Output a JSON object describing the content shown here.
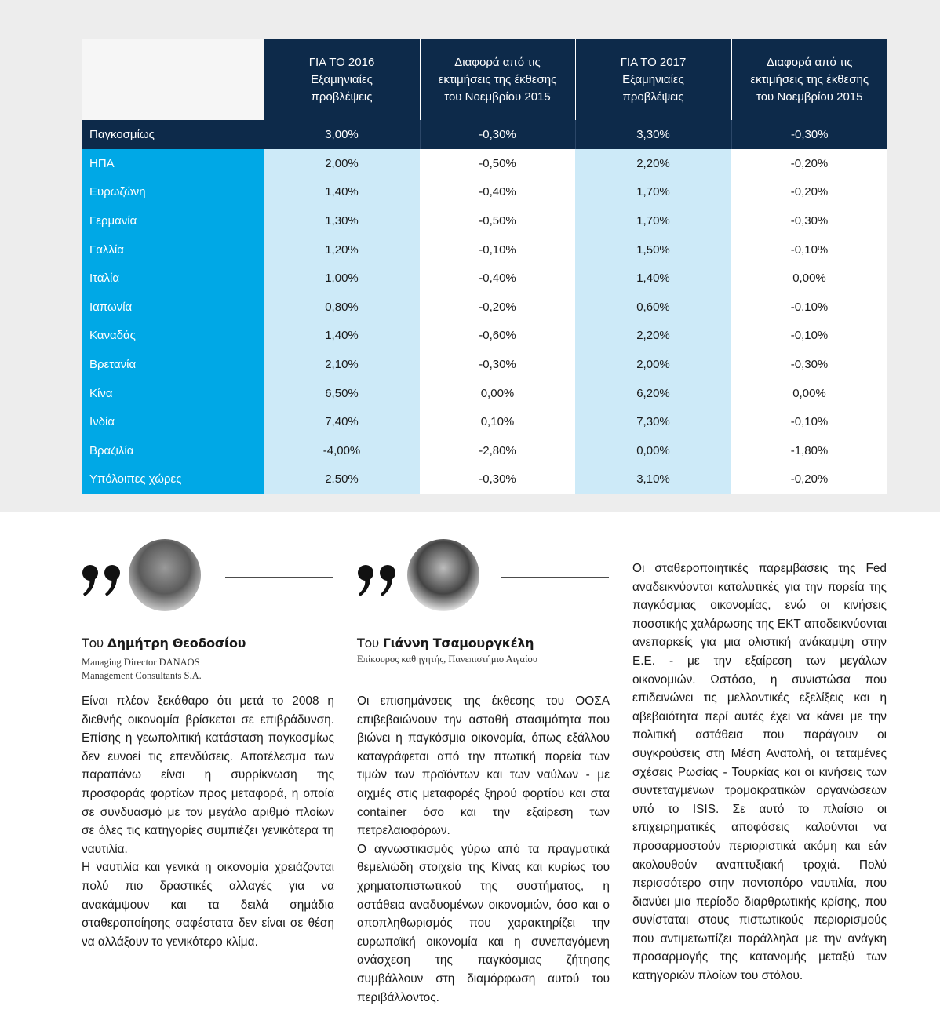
{
  "table": {
    "headers": [
      [
        "ΓΙΑ ΤΟ 2016",
        "Εξαμηνιαίες",
        "προβλέψεις"
      ],
      [
        "Διαφορά από τις",
        "εκτιμήσεις της έκθεσης",
        "του Νοεμβρίου 2015"
      ],
      [
        "ΓΙΑ ΤΟ 2017",
        "Εξαμηνιαίες",
        "προβλέψεις"
      ],
      [
        "Διαφορά από τις",
        "εκτιμήσεις της έκθεσης",
        "του Νοεμβρίου 2015"
      ]
    ],
    "rows": [
      [
        "Παγκοσμίως",
        "3,00%",
        "-0,30%",
        "3,30%",
        "-0,30%"
      ],
      [
        "ΗΠΑ",
        "2,00%",
        "-0,50%",
        "2,20%",
        "-0,20%"
      ],
      [
        "Ευρωζώνη",
        "1,40%",
        "-0,40%",
        "1,70%",
        "-0,20%"
      ],
      [
        "Γερμανία",
        "1,30%",
        "-0,50%",
        "1,70%",
        "-0,30%"
      ],
      [
        "Γαλλία",
        "1,20%",
        "-0,10%",
        "1,50%",
        "-0,10%"
      ],
      [
        "Ιταλία",
        "1,00%",
        "-0,40%",
        "1,40%",
        "0,00%"
      ],
      [
        "Ιαπωνία",
        "0,80%",
        "-0,20%",
        "0,60%",
        "-0,10%"
      ],
      [
        "Καναδάς",
        "1,40%",
        "-0,60%",
        "2,20%",
        "-0,10%"
      ],
      [
        "Βρετανία",
        "2,10%",
        "-0,30%",
        "2,00%",
        "-0,30%"
      ],
      [
        "Κίνα",
        "6,50%",
        "0,00%",
        "6,20%",
        "0,00%"
      ],
      [
        "Ινδία",
        "7,40%",
        "0,10%",
        "7,30%",
        "-0,10%"
      ],
      [
        "Βραζιλία",
        "-4,00%",
        "-2,80%",
        "0,00%",
        "-1,80%"
      ],
      [
        "Υπόλοιπες χώρες",
        "2.50%",
        "-0,30%",
        "3,10%",
        "-0,20%"
      ]
    ]
  },
  "columns": [
    {
      "author": {
        "prefix": "Του",
        "name": "Δημήτρη Θεοδοσίου",
        "role": [
          "Managing Director DANAOS",
          "Management Consultants S.A."
        ]
      },
      "paragraphs": [
        "Είναι πλέον ξεκάθαρο ότι μετά το 2008 η διεθνής οικονομία βρίσκεται σε επιβράδυνση. Επίσης η γεωπολιτική κατάσταση παγκοσμίως δεν ευνοεί τις επενδύσεις. Αποτέλεσμα των παραπάνω είναι η συρρίκνωση της προσφοράς φορτίων προς μεταφορά, η οποία σε συνδυασμό με τον μεγάλο αριθμό πλοίων σε όλες τις κατηγορίες συμπιέζει γενικότερα τη ναυτιλία.",
        "Η ναυτιλία και γενικά η οικονομία χρειάζονται πολύ πιο δραστικές αλλαγές για να ανακάμψουν και τα δειλά σημάδια σταθεροποίησης σαφέστατα δεν είναι σε θέση να αλλάξουν το γενικότερο κλίμα."
      ]
    },
    {
      "author": {
        "prefix": "Του",
        "name": "Γιάννη Τσαμουργκέλη",
        "role": [
          "Επίκουρος καθηγητής, Πανεπιστήμιο Αιγαίου"
        ]
      },
      "paragraphs": [
        "Οι επισημάνσεις της έκθεσης του ΟΟΣΑ επιβεβαιώνουν την ασταθή στασιμότητα που βιώνει η παγκόσμια οικονομία, όπως εξάλλου καταγράφεται από την πτωτική πορεία των τιμών των προϊόντων και των ναύλων - με αιχμές στις μεταφορές ξηρού φορτίου και στα container όσο και την εξαίρεση των πετρελαιοφόρων.",
        "Ο αγνωστικισμός γύρω από τα πραγματικά θεμελιώδη στοιχεία της Κίνας και κυρίως του χρηματοπιστωτικού της συστήματος, η αστάθεια αναδυομένων οικονομιών, όσο και ο αποπληθωρισμός που χαρακτηρίζει την ευρωπαϊκή οικονομία και η συνεπαγόμενη ανάσχεση της παγκόσμιας ζήτησης συμβάλλουν στη διαμόρφωση αυτού του περιβάλλοντος."
      ]
    },
    {
      "paragraphs": [
        "Οι σταθεροποιητικές παρεμβάσεις της Fed αναδεικνύονται καταλυτικές για την πορεία της παγκόσμιας οικονομίας, ενώ οι κινήσεις ποσοτικής χαλάρωσης της ΕΚΤ αποδεικνύονται ανεπαρκείς για μια ολιστική ανάκαμψη στην Ε.Ε. - με την εξαίρεση των μεγάλων οικονομιών. Ωστόσο, η συνιστώσα που επιδεινώνει τις μελλοντικές εξελίξεις και η αβεβαιότητα περί αυτές έχει να κάνει με την πολιτική αστάθεια που παράγουν οι συγκρούσεις στη Μέση Ανατολή, οι τεταμένες σχέσεις Ρωσίας - Τουρκίας και οι κινήσεις των συντεταγμένων τρομοκρατικών οργανώσεων υπό το ISIS. Σε αυτό το πλαίσιο οι επιχειρηματικές αποφάσεις καλούνται να προσαρμοστούν περιοριστικά ακόμη και εάν ακολουθούν αναπτυξιακή τροχιά. Πολύ περισσότερο στην ποντοπόρο ναυτιλία, που διανύει μια περίοδο διαρθρωτικής κρίσης, που συνίσταται στους πιστωτικούς περιορισμούς που αντιμετωπίζει παράλληλα με την ανάγκη προσαρμογής της κατανομής μεταξύ των κατηγοριών πλοίων του στόλου."
      ]
    }
  ]
}
